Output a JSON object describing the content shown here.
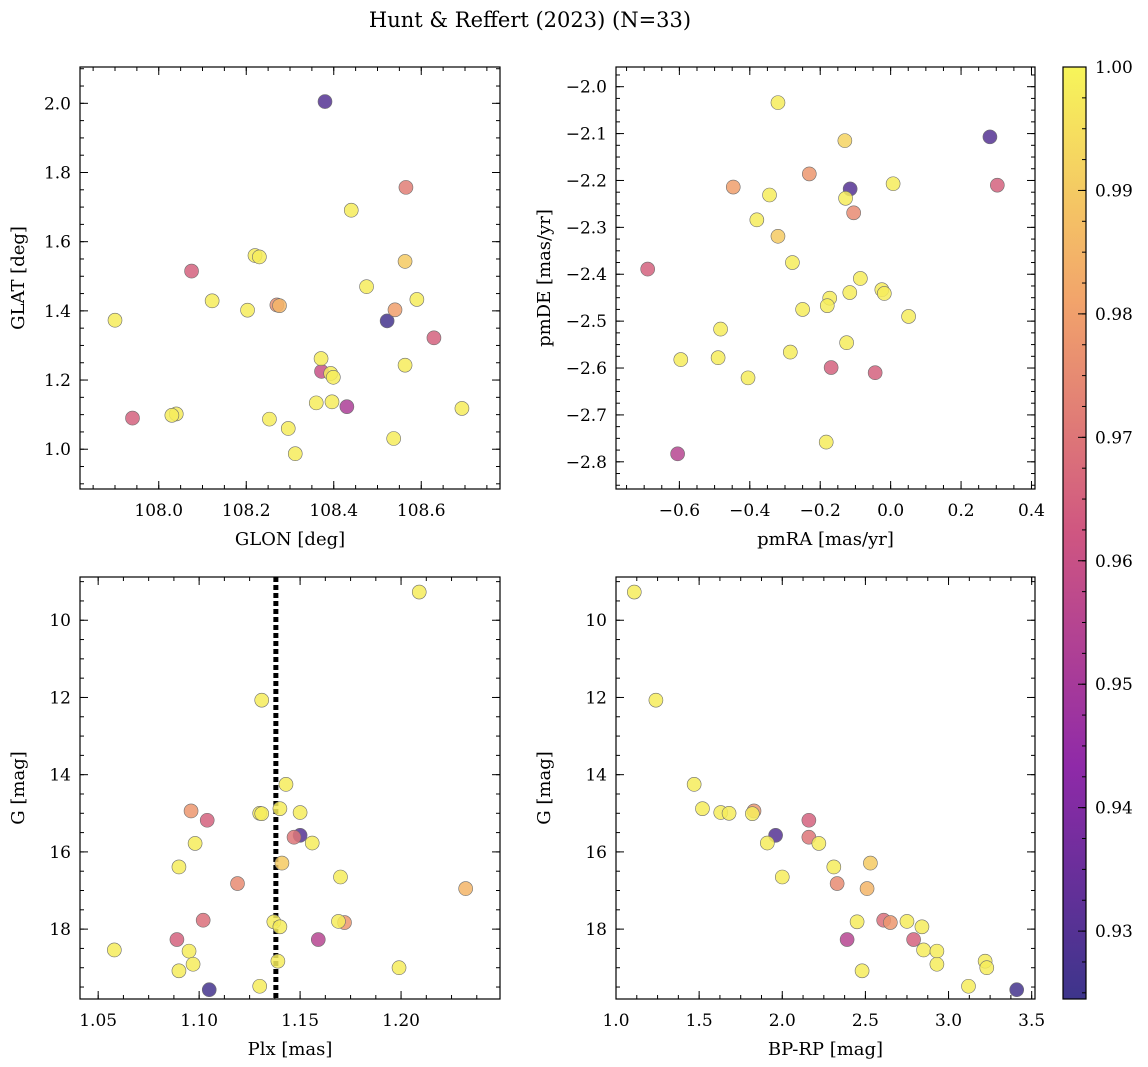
{
  "figure_title": "Hunt & Reffert (2023) (N=33)",
  "chart_data": [
    {
      "type": "scatter",
      "panel": "top-left",
      "xlabel": "GLON [deg]",
      "ylabel": "GLAT [deg]",
      "xlim": [
        107.82,
        108.78
      ],
      "ylim": [
        0.885,
        2.105
      ],
      "xticks": [
        108.0,
        108.2,
        108.4,
        108.6
      ],
      "xtick_labels": [
        "108.0",
        "108.2",
        "108.4",
        "108.6"
      ],
      "yticks": [
        1.0,
        1.2,
        1.4,
        1.6,
        1.8,
        2.0
      ],
      "ytick_labels": [
        "1.0",
        "1.2",
        "1.4",
        "1.6",
        "1.8",
        "2.0"
      ],
      "invert_y": false,
      "points": [
        {
          "x": 108.38,
          "y": 2.005,
          "c": 0.93
        },
        {
          "x": 108.565,
          "y": 1.757,
          "c": 0.972
        },
        {
          "x": 108.44,
          "y": 1.691,
          "c": 0.998
        },
        {
          "x": 108.22,
          "y": 1.56,
          "c": 0.998
        },
        {
          "x": 108.23,
          "y": 1.556,
          "c": 0.998
        },
        {
          "x": 108.563,
          "y": 1.543,
          "c": 0.99
        },
        {
          "x": 108.075,
          "y": 1.515,
          "c": 0.965
        },
        {
          "x": 108.475,
          "y": 1.47,
          "c": 0.998
        },
        {
          "x": 108.122,
          "y": 1.429,
          "c": 0.998
        },
        {
          "x": 108.59,
          "y": 1.433,
          "c": 0.998
        },
        {
          "x": 108.27,
          "y": 1.417,
          "c": 0.976
        },
        {
          "x": 108.276,
          "y": 1.415,
          "c": 0.985
        },
        {
          "x": 108.54,
          "y": 1.403,
          "c": 0.98
        },
        {
          "x": 108.203,
          "y": 1.402,
          "c": 0.998
        },
        {
          "x": 107.9,
          "y": 1.373,
          "c": 0.998
        },
        {
          "x": 108.522,
          "y": 1.371,
          "c": 0.926
        },
        {
          "x": 108.629,
          "y": 1.322,
          "c": 0.965
        },
        {
          "x": 108.371,
          "y": 1.262,
          "c": 0.998
        },
        {
          "x": 108.563,
          "y": 1.243,
          "c": 0.998
        },
        {
          "x": 108.372,
          "y": 1.225,
          "c": 0.96
        },
        {
          "x": 108.393,
          "y": 1.219,
          "c": 0.998
        },
        {
          "x": 108.399,
          "y": 1.208,
          "c": 0.998
        },
        {
          "x": 108.36,
          "y": 1.134,
          "c": 0.998
        },
        {
          "x": 108.396,
          "y": 1.137,
          "c": 0.998
        },
        {
          "x": 108.43,
          "y": 1.123,
          "c": 0.952
        },
        {
          "x": 108.693,
          "y": 1.118,
          "c": 0.998
        },
        {
          "x": 108.04,
          "y": 1.102,
          "c": 0.998
        },
        {
          "x": 108.03,
          "y": 1.098,
          "c": 0.998
        },
        {
          "x": 107.94,
          "y": 1.09,
          "c": 0.965
        },
        {
          "x": 108.253,
          "y": 1.087,
          "c": 0.998
        },
        {
          "x": 108.296,
          "y": 1.06,
          "c": 0.998
        },
        {
          "x": 108.537,
          "y": 1.031,
          "c": 0.998
        },
        {
          "x": 108.312,
          "y": 0.987,
          "c": 0.998
        }
      ]
    },
    {
      "type": "scatter",
      "panel": "top-right",
      "xlabel": "pmRA [mas/yr]",
      "ylabel": "pmDE [mas/yr]",
      "xlim": [
        -0.78,
        0.41
      ],
      "ylim": [
        -2.858,
        -1.958
      ],
      "xticks": [
        -0.6,
        -0.4,
        -0.2,
        0.0,
        0.2,
        0.4
      ],
      "xtick_labels": [
        "−0.6",
        "−0.4",
        "−0.2",
        "0.0",
        "0.2",
        "0.4"
      ],
      "yticks": [
        -2.8,
        -2.7,
        -2.6,
        -2.5,
        -2.4,
        -2.3,
        -2.2,
        -2.1,
        -2.0
      ],
      "ytick_labels": [
        "−2.8",
        "−2.7",
        "−2.6",
        "−2.5",
        "−2.4",
        "−2.3",
        "−2.2",
        "−2.1",
        "−2.0"
      ],
      "invert_y": false,
      "points": [
        {
          "x": -0.32,
          "y": -2.034,
          "c": 0.998
        },
        {
          "x": 0.282,
          "y": -2.107,
          "c": 0.93
        },
        {
          "x": -0.13,
          "y": -2.115,
          "c": 0.992
        },
        {
          "x": -0.231,
          "y": -2.186,
          "c": 0.978
        },
        {
          "x": 0.303,
          "y": -2.21,
          "c": 0.965
        },
        {
          "x": 0.007,
          "y": -2.207,
          "c": 0.998
        },
        {
          "x": -0.447,
          "y": -2.214,
          "c": 0.98
        },
        {
          "x": -0.115,
          "y": -2.218,
          "c": 0.93
        },
        {
          "x": -0.344,
          "y": -2.231,
          "c": 0.998
        },
        {
          "x": -0.128,
          "y": -2.238,
          "c": 0.998
        },
        {
          "x": -0.105,
          "y": -2.269,
          "c": 0.975
        },
        {
          "x": -0.38,
          "y": -2.284,
          "c": 0.998
        },
        {
          "x": -0.32,
          "y": -2.319,
          "c": 0.99
        },
        {
          "x": -0.279,
          "y": -2.375,
          "c": 0.998
        },
        {
          "x": -0.69,
          "y": -2.389,
          "c": 0.965
        },
        {
          "x": -0.086,
          "y": -2.409,
          "c": 0.998
        },
        {
          "x": -0.025,
          "y": -2.433,
          "c": 0.998
        },
        {
          "x": -0.018,
          "y": -2.441,
          "c": 0.998
        },
        {
          "x": -0.116,
          "y": -2.439,
          "c": 0.998
        },
        {
          "x": -0.173,
          "y": -2.451,
          "c": 0.998
        },
        {
          "x": -0.18,
          "y": -2.467,
          "c": 0.998
        },
        {
          "x": -0.25,
          "y": -2.475,
          "c": 0.998
        },
        {
          "x": 0.051,
          "y": -2.49,
          "c": 0.998
        },
        {
          "x": -0.483,
          "y": -2.517,
          "c": 0.998
        },
        {
          "x": -0.125,
          "y": -2.546,
          "c": 0.998
        },
        {
          "x": -0.285,
          "y": -2.566,
          "c": 0.998
        },
        {
          "x": -0.49,
          "y": -2.578,
          "c": 0.998
        },
        {
          "x": -0.596,
          "y": -2.582,
          "c": 0.998
        },
        {
          "x": -0.169,
          "y": -2.599,
          "c": 0.965
        },
        {
          "x": -0.044,
          "y": -2.61,
          "c": 0.965
        },
        {
          "x": -0.405,
          "y": -2.621,
          "c": 0.998
        },
        {
          "x": -0.183,
          "y": -2.758,
          "c": 0.998
        },
        {
          "x": -0.605,
          "y": -2.783,
          "c": 0.955
        }
      ]
    },
    {
      "type": "scatter",
      "panel": "bottom-left",
      "xlabel": "Plx [mas]",
      "ylabel": "G [mag]",
      "xlim": [
        1.041,
        1.249
      ],
      "ylim": [
        19.81,
        8.88
      ],
      "xticks": [
        1.05,
        1.1,
        1.15,
        1.2
      ],
      "xtick_labels": [
        "1.05",
        "1.10",
        "1.15",
        "1.20"
      ],
      "yticks": [
        10,
        12,
        14,
        16,
        18
      ],
      "ytick_labels": [
        "10",
        "12",
        "14",
        "16",
        "18"
      ],
      "invert_y": true,
      "vline": {
        "x": 1.138,
        "style": "dotted"
      },
      "points": [
        {
          "x": 1.209,
          "y": 9.27,
          "c": 0.998
        },
        {
          "x": 1.131,
          "y": 12.07,
          "c": 0.998
        },
        {
          "x": 1.143,
          "y": 14.25,
          "c": 0.998
        },
        {
          "x": 1.14,
          "y": 14.88,
          "c": 0.998
        },
        {
          "x": 1.15,
          "y": 14.98,
          "c": 0.998
        },
        {
          "x": 1.096,
          "y": 14.94,
          "c": 0.978
        },
        {
          "x": 1.13,
          "y": 15.0,
          "c": 0.998
        },
        {
          "x": 1.131,
          "y": 15.01,
          "c": 0.998
        },
        {
          "x": 1.104,
          "y": 15.18,
          "c": 0.965
        },
        {
          "x": 1.15,
          "y": 15.57,
          "c": 0.93
        },
        {
          "x": 1.147,
          "y": 15.62,
          "c": 0.97
        },
        {
          "x": 1.156,
          "y": 15.77,
          "c": 0.998
        },
        {
          "x": 1.098,
          "y": 15.78,
          "c": 0.998
        },
        {
          "x": 1.141,
          "y": 16.29,
          "c": 0.99
        },
        {
          "x": 1.09,
          "y": 16.39,
          "c": 0.998
        },
        {
          "x": 1.17,
          "y": 16.65,
          "c": 0.998
        },
        {
          "x": 1.119,
          "y": 16.82,
          "c": 0.975
        },
        {
          "x": 1.232,
          "y": 16.95,
          "c": 0.985
        },
        {
          "x": 1.102,
          "y": 17.77,
          "c": 0.968
        },
        {
          "x": 1.137,
          "y": 17.81,
          "c": 0.998
        },
        {
          "x": 1.169,
          "y": 17.8,
          "c": 0.998
        },
        {
          "x": 1.172,
          "y": 17.83,
          "c": 0.978
        },
        {
          "x": 1.14,
          "y": 17.94,
          "c": 0.998
        },
        {
          "x": 1.089,
          "y": 18.27,
          "c": 0.965
        },
        {
          "x": 1.159,
          "y": 18.27,
          "c": 0.955
        },
        {
          "x": 1.058,
          "y": 18.54,
          "c": 0.998
        },
        {
          "x": 1.095,
          "y": 18.57,
          "c": 0.998
        },
        {
          "x": 1.139,
          "y": 18.83,
          "c": 0.998
        },
        {
          "x": 1.097,
          "y": 18.91,
          "c": 0.998
        },
        {
          "x": 1.199,
          "y": 19.0,
          "c": 0.998
        },
        {
          "x": 1.09,
          "y": 19.08,
          "c": 0.998
        },
        {
          "x": 1.13,
          "y": 19.48,
          "c": 0.998
        },
        {
          "x": 1.105,
          "y": 19.57,
          "c": 0.926
        }
      ]
    },
    {
      "type": "scatter",
      "panel": "bottom-right",
      "xlabel": "BP-RP [mag]",
      "ylabel": "G [mag]",
      "xlim": [
        1.0,
        3.52
      ],
      "ylim": [
        19.81,
        8.88
      ],
      "xticks": [
        1.0,
        1.5,
        2.0,
        2.5,
        3.0,
        3.5
      ],
      "xtick_labels": [
        "1.0",
        "1.5",
        "2.0",
        "2.5",
        "3.0",
        "3.5"
      ],
      "yticks": [
        10,
        12,
        14,
        16,
        18
      ],
      "ytick_labels": [
        "10",
        "12",
        "14",
        "16",
        "18"
      ],
      "invert_y": true,
      "points": [
        {
          "x": 1.11,
          "y": 9.27,
          "c": 0.998
        },
        {
          "x": 1.24,
          "y": 12.07,
          "c": 0.998
        },
        {
          "x": 1.47,
          "y": 14.25,
          "c": 0.998
        },
        {
          "x": 1.52,
          "y": 14.88,
          "c": 0.998
        },
        {
          "x": 1.63,
          "y": 14.98,
          "c": 0.998
        },
        {
          "x": 1.68,
          "y": 15.0,
          "c": 0.998
        },
        {
          "x": 1.83,
          "y": 14.94,
          "c": 0.978
        },
        {
          "x": 1.82,
          "y": 15.01,
          "c": 0.998
        },
        {
          "x": 2.16,
          "y": 15.18,
          "c": 0.965
        },
        {
          "x": 1.96,
          "y": 15.57,
          "c": 0.93
        },
        {
          "x": 2.16,
          "y": 15.62,
          "c": 0.97
        },
        {
          "x": 1.91,
          "y": 15.77,
          "c": 0.998
        },
        {
          "x": 2.22,
          "y": 15.78,
          "c": 0.998
        },
        {
          "x": 2.53,
          "y": 16.29,
          "c": 0.99
        },
        {
          "x": 2.31,
          "y": 16.39,
          "c": 0.998
        },
        {
          "x": 2.0,
          "y": 16.65,
          "c": 0.998
        },
        {
          "x": 2.33,
          "y": 16.82,
          "c": 0.975
        },
        {
          "x": 2.51,
          "y": 16.95,
          "c": 0.985
        },
        {
          "x": 2.61,
          "y": 17.77,
          "c": 0.968
        },
        {
          "x": 2.45,
          "y": 17.81,
          "c": 0.998
        },
        {
          "x": 2.75,
          "y": 17.8,
          "c": 0.998
        },
        {
          "x": 2.65,
          "y": 17.83,
          "c": 0.978
        },
        {
          "x": 2.84,
          "y": 17.94,
          "c": 0.998
        },
        {
          "x": 2.39,
          "y": 18.27,
          "c": 0.955
        },
        {
          "x": 2.79,
          "y": 18.27,
          "c": 0.965
        },
        {
          "x": 2.85,
          "y": 18.54,
          "c": 0.998
        },
        {
          "x": 2.93,
          "y": 18.57,
          "c": 0.998
        },
        {
          "x": 3.22,
          "y": 18.83,
          "c": 0.998
        },
        {
          "x": 2.93,
          "y": 18.91,
          "c": 0.998
        },
        {
          "x": 3.23,
          "y": 19.0,
          "c": 0.998
        },
        {
          "x": 2.48,
          "y": 19.08,
          "c": 0.998
        },
        {
          "x": 3.12,
          "y": 19.48,
          "c": 0.998
        },
        {
          "x": 3.41,
          "y": 19.57,
          "c": 0.926
        }
      ]
    }
  ],
  "colorbar": {
    "cmap": "plasma",
    "vmin": 0.9245,
    "vmax": 1.0,
    "ticks": [
      0.93,
      0.94,
      0.95,
      0.96,
      0.97,
      0.98,
      0.99,
      1.0
    ],
    "tick_labels": [
      "0.93",
      "0.94",
      "0.95",
      "0.96",
      "0.97",
      "0.98",
      "0.99",
      "1.00"
    ],
    "range_colors": [
      "#3d358b",
      "#8f2aa8",
      "#cf5681",
      "#f2a46b",
      "#f7f55a"
    ]
  }
}
